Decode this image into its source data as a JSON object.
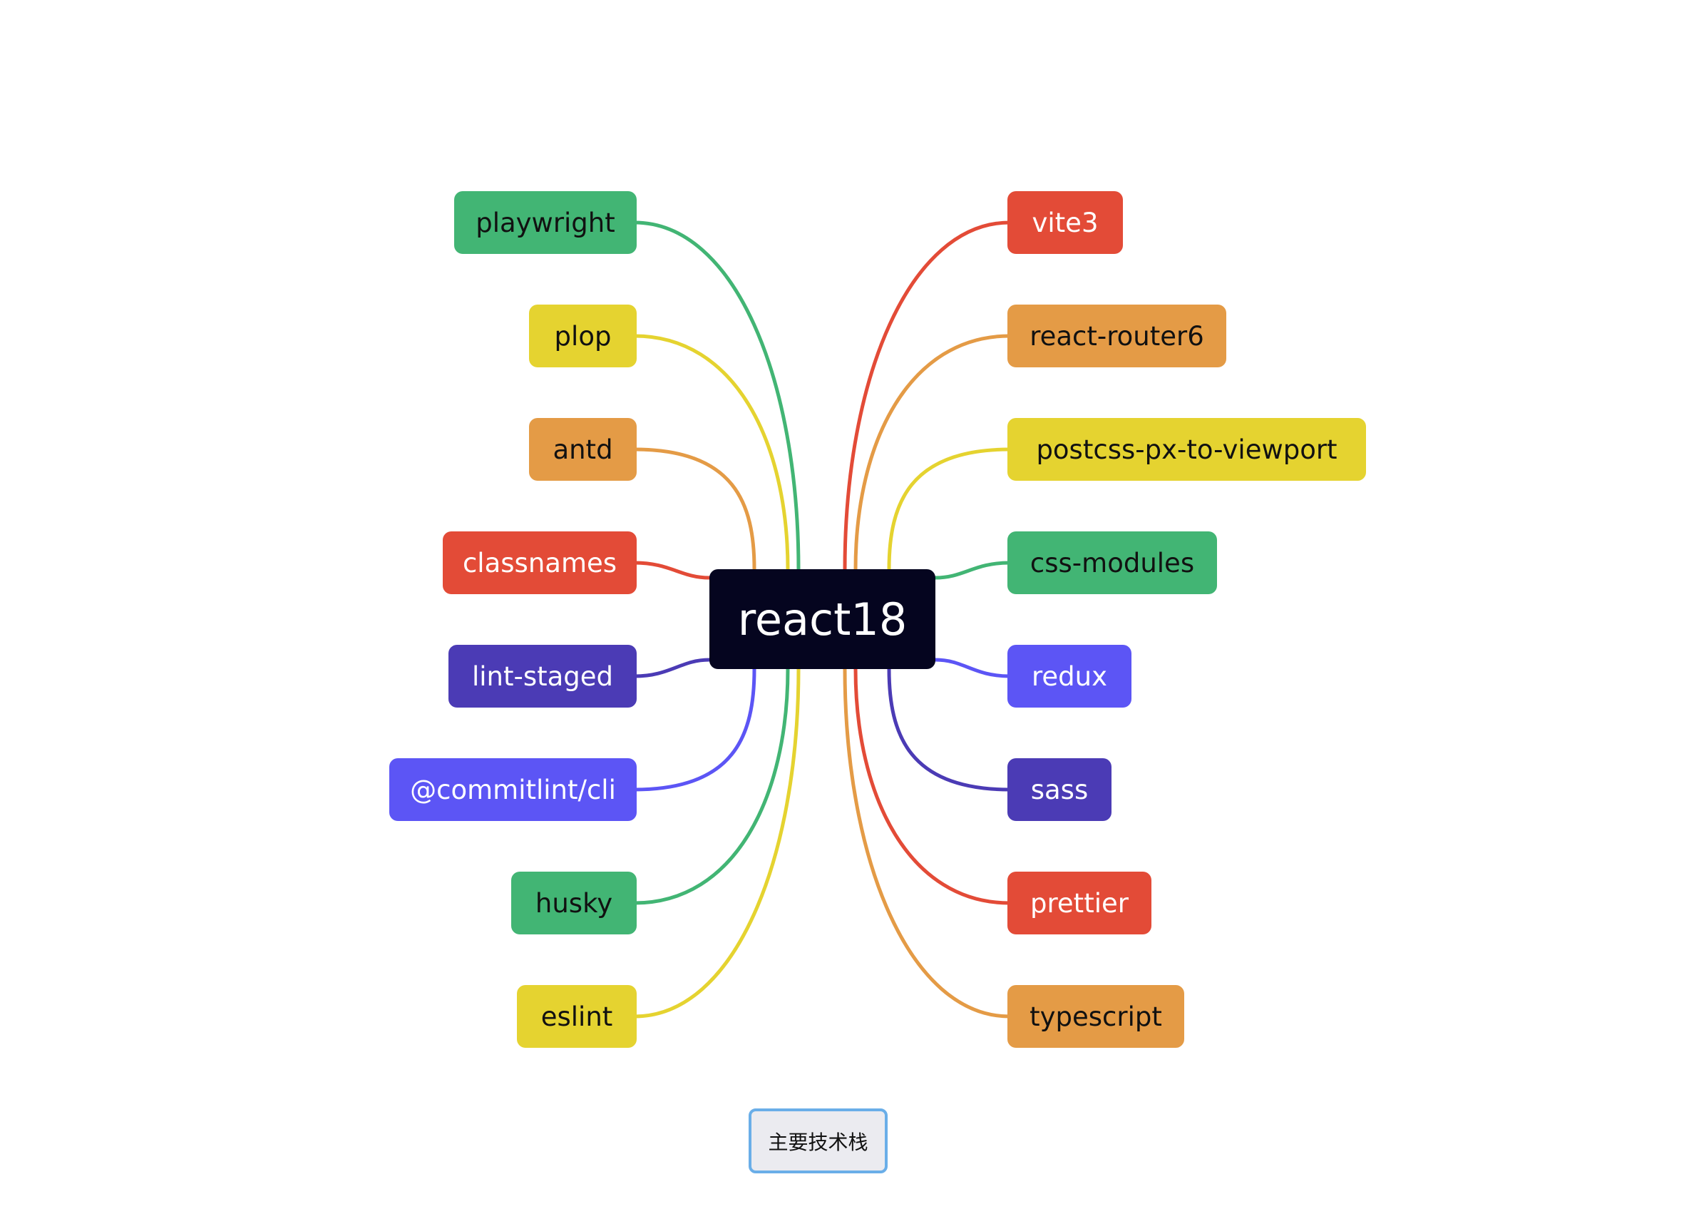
{
  "root": {
    "label": "react18"
  },
  "left_branches": [
    {
      "label": "playwright",
      "color": "#42b574",
      "text_color": "#111111"
    },
    {
      "label": "plop",
      "color": "#e5d330",
      "text_color": "#111111"
    },
    {
      "label": "antd",
      "color": "#e49b46",
      "text_color": "#111111"
    },
    {
      "label": "classnames",
      "color": "#e34b37",
      "text_color": "#ffffff"
    },
    {
      "label": "lint-staged",
      "color": "#4b3bb5",
      "text_color": "#ffffff"
    },
    {
      "label": "@commitlint/cli",
      "color": "#5c55f5",
      "text_color": "#ffffff"
    },
    {
      "label": "husky",
      "color": "#42b574",
      "text_color": "#111111"
    },
    {
      "label": "eslint",
      "color": "#e5d330",
      "text_color": "#111111"
    }
  ],
  "right_branches": [
    {
      "label": "vite3",
      "color": "#e34b37",
      "text_color": "#ffffff"
    },
    {
      "label": "react-router6",
      "color": "#e49b46",
      "text_color": "#111111"
    },
    {
      "label": "postcss-px-to-viewport",
      "color": "#e5d330",
      "text_color": "#111111"
    },
    {
      "label": "css-modules",
      "color": "#42b574",
      "text_color": "#111111"
    },
    {
      "label": "redux",
      "color": "#5c55f5",
      "text_color": "#ffffff"
    },
    {
      "label": "sass",
      "color": "#4b3bb5",
      "text_color": "#ffffff"
    },
    {
      "label": "prettier",
      "color": "#e34b37",
      "text_color": "#ffffff"
    },
    {
      "label": "typescript",
      "color": "#e49b46",
      "text_color": "#111111"
    }
  ],
  "caption_button": {
    "label": "主要技术栈"
  }
}
